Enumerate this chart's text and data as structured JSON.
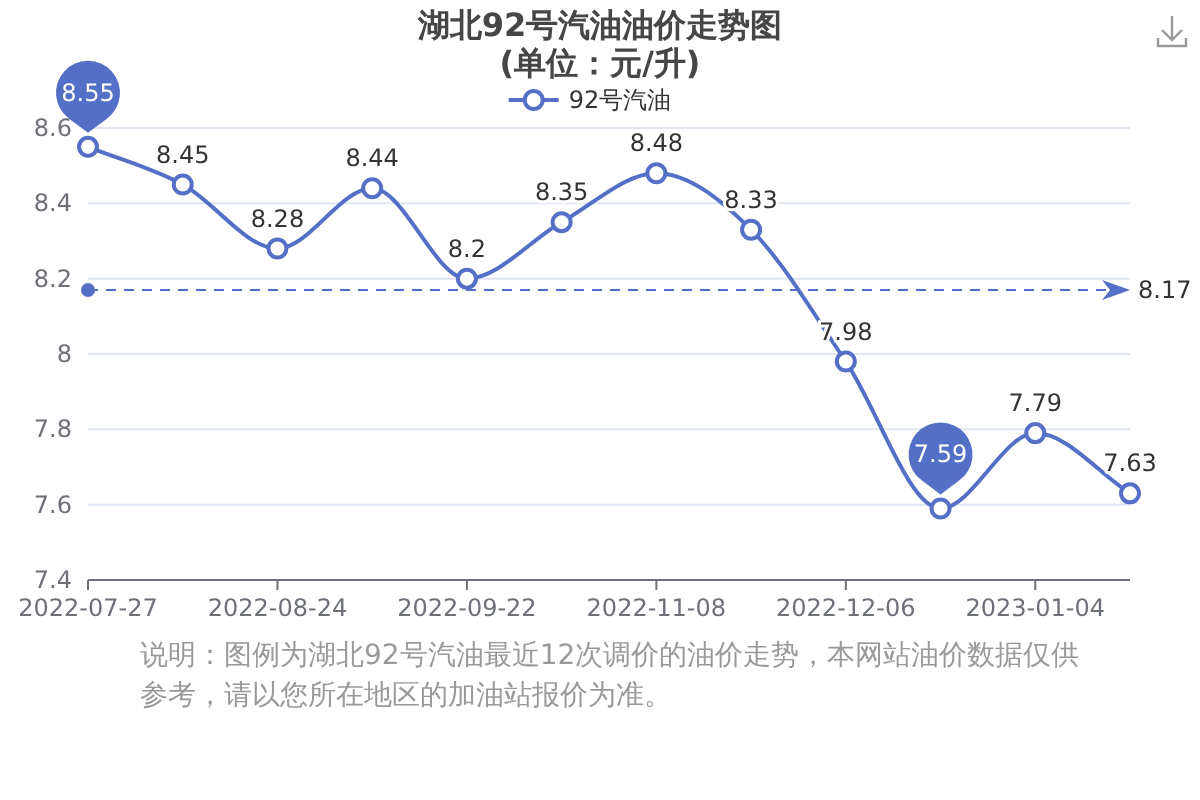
{
  "chart_data": {
    "type": "line",
    "title": "湖北92号汽油油价走势图",
    "subtitle": "(单位：元/升)",
    "categories": [
      "2022-07-27",
      null,
      "2022-08-24",
      null,
      "2022-09-22",
      null,
      "2022-11-08",
      null,
      "2022-12-06",
      null,
      "2023-01-04",
      null
    ],
    "series": [
      {
        "name": "92号汽油",
        "color": "#5470c6",
        "values": [
          8.55,
          8.45,
          8.28,
          8.44,
          8.2,
          8.35,
          8.48,
          8.33,
          7.98,
          7.59,
          7.79,
          7.63
        ],
        "value_labels": [
          null,
          "8.45",
          "8.28",
          "8.44",
          "8.2",
          "8.35",
          "8.48",
          "8.33",
          "7.98",
          null,
          "7.79",
          "7.63"
        ]
      }
    ],
    "ylim": [
      7.4,
      8.6
    ],
    "yticks": [
      7.4,
      7.6,
      7.8,
      8,
      8.2,
      8.4,
      8.6
    ],
    "grid": "y",
    "legend": "top",
    "marker": "circle",
    "line_style": "solid",
    "ref_lines": [
      {
        "axis": "y",
        "value": 8.17,
        "label": "8.17",
        "color": "#5470c6",
        "line_style": "dashed"
      }
    ],
    "annotations": [
      {
        "text": "8.55",
        "x": "2022-07-27",
        "y": 8.55
      },
      {
        "text": "7.59",
        "y": 7.59
      },
      "说明：图例为湖北92号汽油最近12次调价的油价走势，本网站油价数据仅供参考，请以您所在地区的加油站报价为准。"
    ]
  }
}
